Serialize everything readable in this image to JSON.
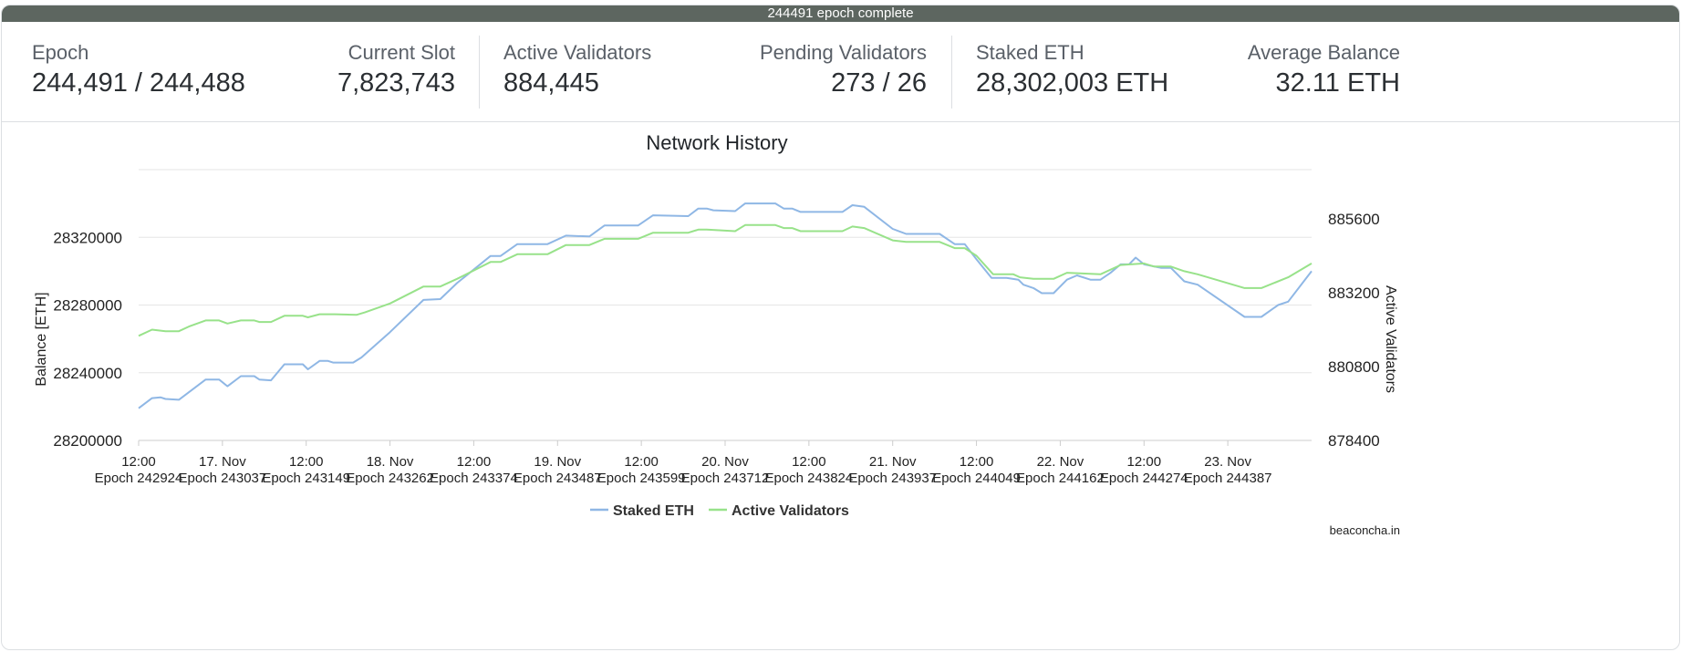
{
  "banner": {
    "text": "244491 epoch complete"
  },
  "stats": {
    "epoch": {
      "label": "Epoch",
      "value": "244,491 / 244,488"
    },
    "current_slot": {
      "label": "Current Slot",
      "value": "7,823,743"
    },
    "active_validators": {
      "label": "Active Validators",
      "value": "884,445"
    },
    "pending_validators": {
      "label": "Pending Validators",
      "value": "273 / 26"
    },
    "staked_eth": {
      "label": "Staked ETH",
      "value": "28,302,003 ETH"
    },
    "average_balance": {
      "label": "Average Balance",
      "value": "32.11 ETH"
    }
  },
  "colors": {
    "staked": "#8fb7e5",
    "validators": "#98e28a",
    "grid": "#e6e6e6",
    "banner": "#5d6660"
  },
  "chart_data": {
    "type": "line",
    "title": "Network History",
    "credit": "beaconcha.in",
    "x_range": [
      0,
      7
    ],
    "x_ticks": [
      {
        "x": 0.0,
        "l1": "12:00",
        "l2": "Epoch 242924"
      },
      {
        "x": 0.5,
        "l1": "17. Nov",
        "l2": "Epoch 243037"
      },
      {
        "x": 1.0,
        "l1": "12:00",
        "l2": "Epoch 243149"
      },
      {
        "x": 1.5,
        "l1": "18. Nov",
        "l2": "Epoch 243262"
      },
      {
        "x": 2.0,
        "l1": "12:00",
        "l2": "Epoch 243374"
      },
      {
        "x": 2.5,
        "l1": "19. Nov",
        "l2": "Epoch 243487"
      },
      {
        "x": 3.0,
        "l1": "12:00",
        "l2": "Epoch 243599"
      },
      {
        "x": 3.5,
        "l1": "20. Nov",
        "l2": "Epoch 243712"
      },
      {
        "x": 4.0,
        "l1": "12:00",
        "l2": "Epoch 243824"
      },
      {
        "x": 4.5,
        "l1": "21. Nov",
        "l2": "Epoch 243937"
      },
      {
        "x": 5.0,
        "l1": "12:00",
        "l2": "Epoch 244049"
      },
      {
        "x": 5.5,
        "l1": "22. Nov",
        "l2": "Epoch 244162"
      },
      {
        "x": 6.0,
        "l1": "12:00",
        "l2": "Epoch 244274"
      },
      {
        "x": 6.5,
        "l1": "23. Nov",
        "l2": "Epoch 244387"
      }
    ],
    "y_left": {
      "label": "Balance [ETH]",
      "range": [
        28200000,
        28360000
      ],
      "ticks": [
        28200000,
        28240000,
        28280000,
        28320000
      ]
    },
    "y_right": {
      "label": "Active Validators",
      "range": [
        878400,
        887200
      ],
      "ticks": [
        878400,
        880800,
        883200,
        885600
      ]
    },
    "grid": true,
    "legend_position": "bottom-center",
    "series": [
      {
        "name": "Staked ETH",
        "axis": "left",
        "points": [
          [
            0.0,
            28219000
          ],
          [
            0.08,
            28225000
          ],
          [
            0.13,
            28225500
          ],
          [
            0.16,
            28224500
          ],
          [
            0.24,
            28224000
          ],
          [
            0.4,
            28236000
          ],
          [
            0.48,
            28236000
          ],
          [
            0.53,
            28232000
          ],
          [
            0.61,
            28238000
          ],
          [
            0.69,
            28238000
          ],
          [
            0.72,
            28236000
          ],
          [
            0.79,
            28235500
          ],
          [
            0.87,
            28245000
          ],
          [
            0.98,
            28245000
          ],
          [
            1.01,
            28242000
          ],
          [
            1.08,
            28247000
          ],
          [
            1.13,
            28247000
          ],
          [
            1.16,
            28246000
          ],
          [
            1.28,
            28246000
          ],
          [
            1.33,
            28249000
          ],
          [
            1.5,
            28264000
          ],
          [
            1.7,
            28283000
          ],
          [
            1.8,
            28283500
          ],
          [
            1.9,
            28293000
          ],
          [
            2.1,
            28309000
          ],
          [
            2.16,
            28309000
          ],
          [
            2.26,
            28316000
          ],
          [
            2.44,
            28316000
          ],
          [
            2.55,
            28321000
          ],
          [
            2.69,
            28320500
          ],
          [
            2.78,
            28327000
          ],
          [
            2.98,
            28327000
          ],
          [
            3.07,
            28333000
          ],
          [
            3.28,
            28332500
          ],
          [
            3.34,
            28337000
          ],
          [
            3.39,
            28337000
          ],
          [
            3.43,
            28336000
          ],
          [
            3.56,
            28335500
          ],
          [
            3.62,
            28340000
          ],
          [
            3.8,
            28340000
          ],
          [
            3.85,
            28337000
          ],
          [
            3.9,
            28337000
          ],
          [
            3.95,
            28335000
          ],
          [
            4.2,
            28335000
          ],
          [
            4.26,
            28339000
          ],
          [
            4.33,
            28338000
          ],
          [
            4.5,
            28325000
          ],
          [
            4.58,
            28322000
          ],
          [
            4.78,
            28322000
          ],
          [
            4.87,
            28316000
          ],
          [
            4.93,
            28316000
          ],
          [
            5.0,
            28307000
          ],
          [
            5.09,
            28296000
          ],
          [
            5.18,
            28296000
          ],
          [
            5.25,
            28295000
          ],
          [
            5.28,
            28292000
          ],
          [
            5.34,
            28290000
          ],
          [
            5.39,
            28287000
          ],
          [
            5.46,
            28287000
          ],
          [
            5.54,
            28295000
          ],
          [
            5.6,
            28297500
          ],
          [
            5.68,
            28295000
          ],
          [
            5.74,
            28295000
          ],
          [
            5.8,
            28299000
          ],
          [
            5.86,
            28304000
          ],
          [
            5.91,
            28304000
          ],
          [
            5.95,
            28308000
          ],
          [
            6.0,
            28304000
          ],
          [
            6.1,
            28302000
          ],
          [
            6.16,
            28302000
          ],
          [
            6.24,
            28294000
          ],
          [
            6.32,
            28292000
          ],
          [
            6.6,
            28273000
          ],
          [
            6.7,
            28273000
          ],
          [
            6.8,
            28280000
          ],
          [
            6.86,
            28282000
          ],
          [
            7.0,
            28300000
          ]
        ]
      },
      {
        "name": "Active Validators",
        "axis": "right",
        "points": [
          [
            0.0,
            881800
          ],
          [
            0.08,
            882000
          ],
          [
            0.16,
            881950
          ],
          [
            0.24,
            881950
          ],
          [
            0.3,
            882100
          ],
          [
            0.4,
            882300
          ],
          [
            0.48,
            882300
          ],
          [
            0.53,
            882200
          ],
          [
            0.61,
            882300
          ],
          [
            0.69,
            882300
          ],
          [
            0.72,
            882250
          ],
          [
            0.79,
            882250
          ],
          [
            0.87,
            882450
          ],
          [
            0.98,
            882450
          ],
          [
            1.01,
            882400
          ],
          [
            1.08,
            882500
          ],
          [
            1.17,
            882500
          ],
          [
            1.3,
            882480
          ],
          [
            1.35,
            882560
          ],
          [
            1.5,
            882850
          ],
          [
            1.7,
            883400
          ],
          [
            1.8,
            883400
          ],
          [
            1.9,
            883650
          ],
          [
            2.1,
            884200
          ],
          [
            2.16,
            884200
          ],
          [
            2.26,
            884450
          ],
          [
            2.44,
            884450
          ],
          [
            2.55,
            884750
          ],
          [
            2.69,
            884750
          ],
          [
            2.78,
            884950
          ],
          [
            2.98,
            884950
          ],
          [
            3.07,
            885150
          ],
          [
            3.28,
            885150
          ],
          [
            3.34,
            885250
          ],
          [
            3.39,
            885250
          ],
          [
            3.56,
            885200
          ],
          [
            3.62,
            885400
          ],
          [
            3.8,
            885400
          ],
          [
            3.85,
            885300
          ],
          [
            3.9,
            885300
          ],
          [
            3.95,
            885200
          ],
          [
            4.2,
            885200
          ],
          [
            4.26,
            885350
          ],
          [
            4.33,
            885300
          ],
          [
            4.5,
            884900
          ],
          [
            4.58,
            884850
          ],
          [
            4.78,
            884850
          ],
          [
            4.87,
            884650
          ],
          [
            4.93,
            884650
          ],
          [
            5.0,
            884400
          ],
          [
            5.1,
            883800
          ],
          [
            5.22,
            883800
          ],
          [
            5.26,
            883700
          ],
          [
            5.34,
            883650
          ],
          [
            5.46,
            883650
          ],
          [
            5.54,
            883850
          ],
          [
            5.74,
            883800
          ],
          [
            5.86,
            884100
          ],
          [
            6.0,
            884150
          ],
          [
            6.06,
            884050
          ],
          [
            6.16,
            884050
          ],
          [
            6.24,
            883900
          ],
          [
            6.32,
            883800
          ],
          [
            6.6,
            883350
          ],
          [
            6.7,
            883350
          ],
          [
            6.86,
            883700
          ],
          [
            7.0,
            884150
          ]
        ]
      }
    ]
  }
}
